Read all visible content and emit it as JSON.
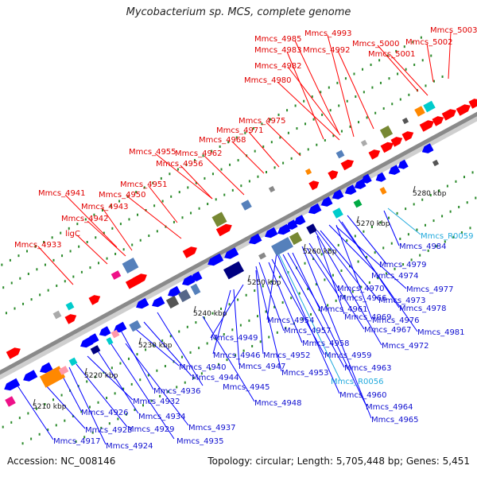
{
  "title": "Mycobacterium sp. MCS, complete genome",
  "footer": {
    "accession": "Accession: NC_008146",
    "summary": "Topology: circular; Length: 5,705,448 bp; Genes: 5,451"
  },
  "colors": {
    "forward_strand": "#ff0000",
    "reverse_strand": "#0000ff",
    "backbone": "#999999",
    "rna_label": "#22aadd"
  },
  "scale_labels": [
    "5210 kbp",
    "5220 kbp",
    "5230 kbp",
    "5240 kbp",
    "5250 kbp",
    "5260 kbp",
    "5270 kbp",
    "5280 kbp"
  ],
  "top_labels": [
    "Mmcs_4933",
    "ligC",
    "Mmcs_4942",
    "Mmcs_4941",
    "Mmcs_4943",
    "Mmcs_4950",
    "Mmcs_4951",
    "Mmcs_4955",
    "Mmcs_4956",
    "Mmcs_4962",
    "Mmcs_4968",
    "Mmcs_4971",
    "Mmcs_4975",
    "Mmcs_4980",
    "Mmcs_4982",
    "Mmcs_4983",
    "Mmcs_4985",
    "Mmcs_4993",
    "Mmcs_4992",
    "Mmcs_5000",
    "Mmcs_5001",
    "Mmcs_5002",
    "Mmcs_5003"
  ],
  "bottom_labels": [
    "Mmcs_4917",
    "Mmcs_4923",
    "Mmcs_4924",
    "Mmcs_4926",
    "Mmcs_4929",
    "Mmcs_4932",
    "Mmcs_4934",
    "Mmcs_4935",
    "Mmcs_4936",
    "Mmcs_4937",
    "Mmcs_4940",
    "Mmcs_4944",
    "Mmcs_4945",
    "Mmcs_4946",
    "Mmcs_4947",
    "Mmcs_4948",
    "Mmcs_4949",
    "Mmcs_4952",
    "Mmcs_4953",
    "Mmcs_4954",
    "Mmcs_4957",
    "Mmcs_4958",
    "Mmcs_4959",
    "Mmcs_4960",
    "Mmcs_4961",
    "Mmcs_4963",
    "Mmcs_4964",
    "Mmcs_4965",
    "Mmcs_4966",
    "Mmcs_4967",
    "Mmcs_4969",
    "Mmcs_4970",
    "Mmcs_4972",
    "Mmcs_4973",
    "Mmcs_4974",
    "Mmcs_4976",
    "Mmcs_4977",
    "Mmcs_4978",
    "Mmcs_4979",
    "Mmcs_4981",
    "Mmcs_4984"
  ],
  "rna_labels": [
    "Mmcs_R0056",
    "Mmcs_R0059"
  ]
}
